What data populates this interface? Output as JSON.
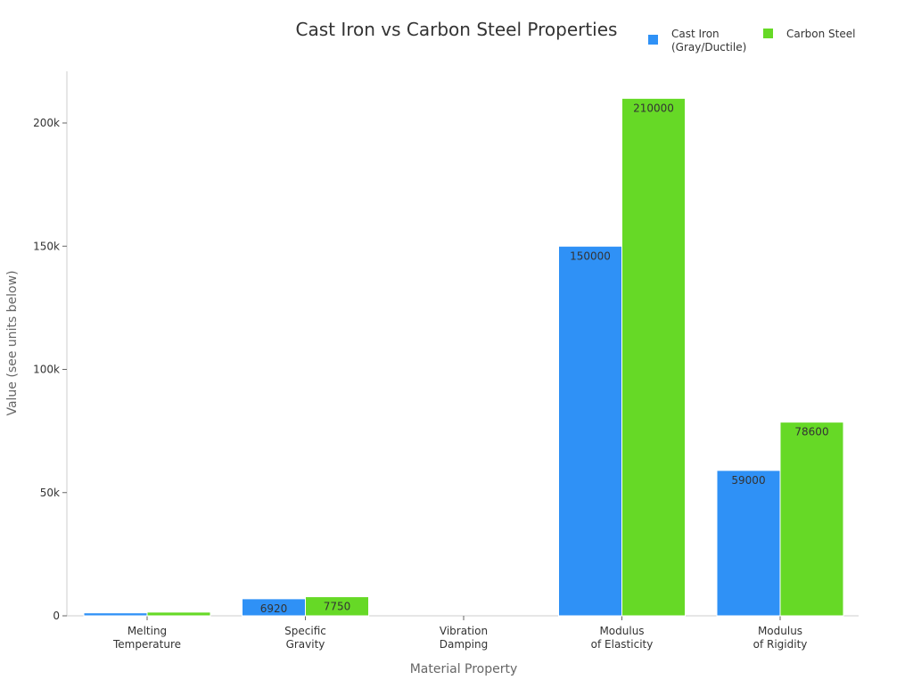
{
  "chart_data": {
    "type": "bar",
    "title": "Cast Iron vs Carbon Steel Properties",
    "xlabel": "Material Property",
    "ylabel": "Value (see units below)",
    "categories": [
      [
        "Melting",
        "Temperature"
      ],
      [
        "Specific",
        "Gravity"
      ],
      [
        "Vibration",
        "Damping"
      ],
      [
        "Modulus",
        "of Elasticity"
      ],
      [
        "Modulus",
        "of Rigidity"
      ]
    ],
    "series": [
      {
        "name": "Cast Iron (Gray/Ductile)",
        "legend_lines": [
          "Cast Iron",
          "(Gray/Ductile)"
        ],
        "color": "#2f91f6",
        "values": [
          1200,
          6920,
          0,
          150000,
          59000
        ]
      },
      {
        "name": "Carbon Steel",
        "legend_lines": [
          "Carbon Steel"
        ],
        "color": "#66d926",
        "values": [
          1500,
          7750,
          0,
          210000,
          78600
        ]
      }
    ],
    "ylim": [
      0,
      220000
    ],
    "yticks": [
      0,
      50000,
      100000,
      150000,
      200000
    ],
    "ytick_labels": [
      "0",
      "50k",
      "100k",
      "150k",
      "200k"
    ],
    "grid": false,
    "legend_position": "top-right"
  }
}
